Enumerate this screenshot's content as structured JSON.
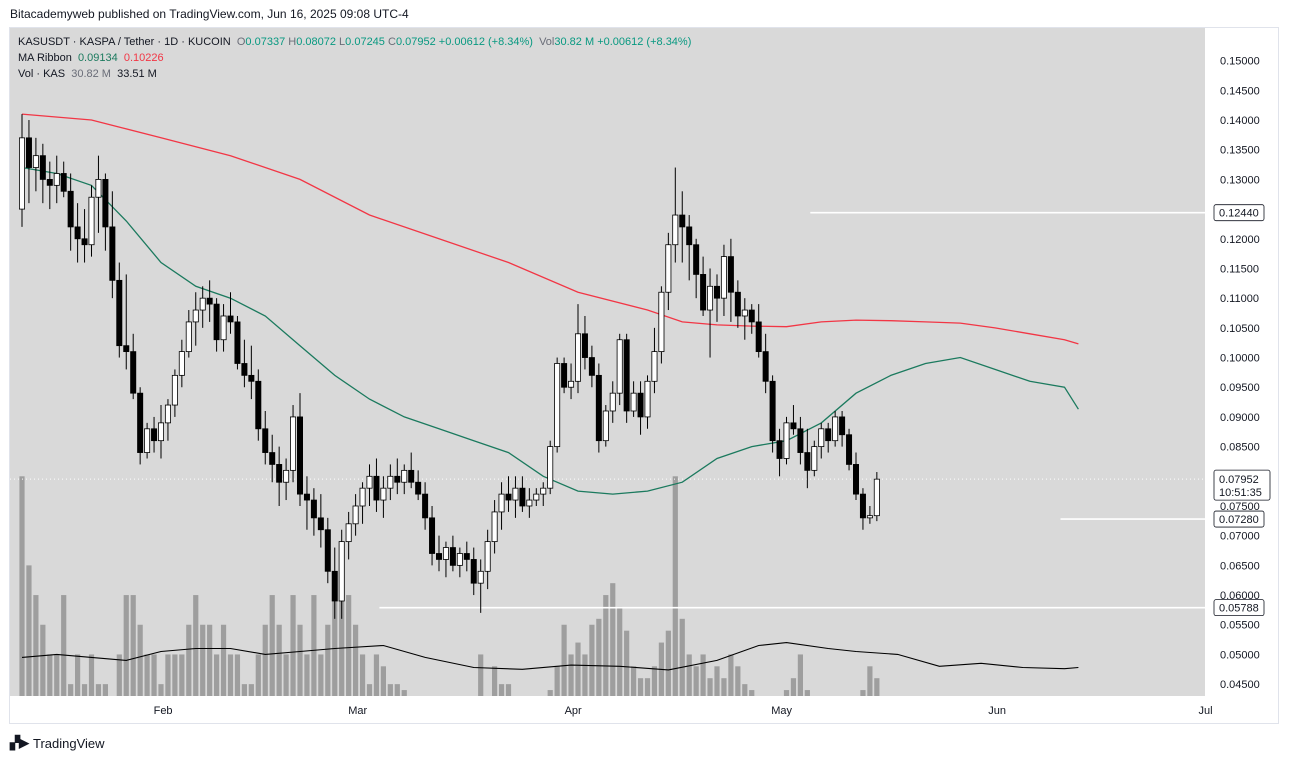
{
  "publisher": "Bitacademyweb published on TradingView.com, Jun 16, 2025 09:08 UTC-4",
  "brand": "TradingView",
  "legend": {
    "symbol": "KASUSDT · KASPA / Tether · 1D · KUCOIN",
    "o_label": "O",
    "o_value": "0.07337",
    "h_label": "H",
    "h_value": "0.08072",
    "l_label": "L",
    "l_value": "0.07245",
    "c_label": "C",
    "c_value": "0.07952",
    "change": "+0.00612 (+8.34%)",
    "vol_label": "Vol",
    "vol_value": "30.82 M",
    "vol_change": "+0.00612 (+8.34%)",
    "ma_label": "MA Ribbon",
    "ma_fast": "0.09134",
    "ma_slow": "0.10226",
    "volind_label": "Vol · KAS",
    "volind_v1": "30.82 M",
    "volind_v2": "33.51 M"
  },
  "chart_data": {
    "type": "candlestick",
    "ylim": [
      0.043,
      0.1555
    ],
    "y_ticks": [
      "0.15000",
      "0.14500",
      "0.14000",
      "0.13500",
      "0.13000",
      "0.12000",
      "0.11500",
      "0.11000",
      "0.10500",
      "0.10000",
      "0.09500",
      "0.09000",
      "0.08500",
      "0.07500",
      "0.07000",
      "0.06500",
      "0.06000",
      "0.05500",
      "0.05000",
      "0.04500"
    ],
    "x_labels": [
      {
        "label": "Feb",
        "index": 20.3
      },
      {
        "label": "Mar",
        "index": 48.3
      },
      {
        "label": "Apr",
        "index": 79.3
      },
      {
        "label": "May",
        "index": 109.3
      },
      {
        "label": "Jun",
        "index": 140.3
      },
      {
        "label": "Jul",
        "index": 170.3
      }
    ],
    "price_levels": [
      {
        "label": "0.12440",
        "value": 0.1244,
        "from_index": 114
      },
      {
        "label": "0.07280",
        "value": 0.0728,
        "from_index": 150
      },
      {
        "label": "0.05788",
        "value": 0.05788,
        "from_index": 52
      }
    ],
    "last_price": {
      "label": "0.07952",
      "countdown": "10:51:35",
      "value": 0.07952
    },
    "colors": {
      "up": "#ffffff",
      "down": "#000000",
      "wick": "#000000",
      "ma_fast": "#1b7a5e",
      "ma_slow": "#f23645",
      "volume": "#9e9e9e",
      "vol_ma": "#000000",
      "level": "#ffffff",
      "background": "#d9d9d9"
    },
    "candle_x0": 12,
    "candle_step": 6.95,
    "candles": [
      [
        0.125,
        0.141,
        0.122,
        0.137
      ],
      [
        0.137,
        0.14,
        0.126,
        0.132
      ],
      [
        0.132,
        0.137,
        0.128,
        0.134
      ],
      [
        0.134,
        0.136,
        0.126,
        0.13
      ],
      [
        0.13,
        0.133,
        0.125,
        0.129
      ],
      [
        0.129,
        0.134,
        0.126,
        0.131
      ],
      [
        0.131,
        0.133,
        0.127,
        0.128
      ],
      [
        0.128,
        0.131,
        0.118,
        0.122
      ],
      [
        0.122,
        0.126,
        0.116,
        0.12
      ],
      [
        0.12,
        0.125,
        0.116,
        0.119
      ],
      [
        0.119,
        0.129,
        0.117,
        0.127
      ],
      [
        0.127,
        0.134,
        0.121,
        0.13
      ],
      [
        0.13,
        0.131,
        0.118,
        0.122
      ],
      [
        0.122,
        0.128,
        0.11,
        0.113
      ],
      [
        0.113,
        0.116,
        0.1,
        0.102
      ],
      [
        0.102,
        0.114,
        0.098,
        0.101
      ],
      [
        0.101,
        0.104,
        0.093,
        0.094
      ],
      [
        0.094,
        0.095,
        0.082,
        0.084
      ],
      [
        0.084,
        0.089,
        0.083,
        0.088
      ],
      [
        0.088,
        0.09,
        0.084,
        0.086
      ],
      [
        0.086,
        0.092,
        0.083,
        0.089
      ],
      [
        0.089,
        0.093,
        0.086,
        0.092
      ],
      [
        0.092,
        0.098,
        0.09,
        0.097
      ],
      [
        0.097,
        0.103,
        0.095,
        0.101
      ],
      [
        0.101,
        0.108,
        0.1,
        0.106
      ],
      [
        0.106,
        0.111,
        0.102,
        0.108
      ],
      [
        0.108,
        0.112,
        0.105,
        0.11
      ],
      [
        0.11,
        0.113,
        0.106,
        0.109
      ],
      [
        0.109,
        0.11,
        0.101,
        0.103
      ],
      [
        0.103,
        0.109,
        0.101,
        0.107
      ],
      [
        0.107,
        0.111,
        0.104,
        0.106
      ],
      [
        0.106,
        0.107,
        0.098,
        0.099
      ],
      [
        0.099,
        0.103,
        0.095,
        0.097
      ],
      [
        0.097,
        0.102,
        0.093,
        0.096
      ],
      [
        0.096,
        0.098,
        0.086,
        0.088
      ],
      [
        0.088,
        0.091,
        0.082,
        0.084
      ],
      [
        0.084,
        0.087,
        0.079,
        0.082
      ],
      [
        0.082,
        0.085,
        0.075,
        0.079
      ],
      [
        0.079,
        0.083,
        0.076,
        0.081
      ],
      [
        0.081,
        0.092,
        0.079,
        0.09
      ],
      [
        0.09,
        0.094,
        0.075,
        0.077
      ],
      [
        0.077,
        0.08,
        0.071,
        0.076
      ],
      [
        0.076,
        0.078,
        0.07,
        0.073
      ],
      [
        0.073,
        0.077,
        0.068,
        0.071
      ],
      [
        0.071,
        0.073,
        0.062,
        0.064
      ],
      [
        0.064,
        0.068,
        0.056,
        0.059
      ],
      [
        0.059,
        0.071,
        0.056,
        0.069
      ],
      [
        0.069,
        0.074,
        0.066,
        0.072
      ],
      [
        0.072,
        0.077,
        0.07,
        0.075
      ],
      [
        0.075,
        0.079,
        0.072,
        0.078
      ],
      [
        0.078,
        0.082,
        0.075,
        0.08
      ],
      [
        0.08,
        0.083,
        0.074,
        0.076
      ],
      [
        0.076,
        0.08,
        0.073,
        0.078
      ],
      [
        0.078,
        0.082,
        0.076,
        0.08
      ],
      [
        0.08,
        0.083,
        0.077,
        0.079
      ],
      [
        0.079,
        0.082,
        0.077,
        0.081
      ],
      [
        0.081,
        0.084,
        0.078,
        0.079
      ],
      [
        0.079,
        0.081,
        0.076,
        0.077
      ],
      [
        0.077,
        0.079,
        0.071,
        0.073
      ],
      [
        0.073,
        0.075,
        0.065,
        0.067
      ],
      [
        0.067,
        0.07,
        0.064,
        0.066
      ],
      [
        0.066,
        0.069,
        0.063,
        0.068
      ],
      [
        0.068,
        0.07,
        0.064,
        0.065
      ],
      [
        0.065,
        0.068,
        0.063,
        0.067
      ],
      [
        0.067,
        0.069,
        0.064,
        0.066
      ],
      [
        0.066,
        0.068,
        0.06,
        0.062
      ],
      [
        0.062,
        0.066,
        0.057,
        0.064
      ],
      [
        0.064,
        0.071,
        0.061,
        0.069
      ],
      [
        0.069,
        0.076,
        0.067,
        0.074
      ],
      [
        0.074,
        0.079,
        0.071,
        0.077
      ],
      [
        0.077,
        0.08,
        0.074,
        0.076
      ],
      [
        0.076,
        0.08,
        0.073,
        0.078
      ],
      [
        0.078,
        0.08,
        0.074,
        0.075
      ],
      [
        0.075,
        0.078,
        0.073,
        0.076
      ],
      [
        0.076,
        0.078,
        0.075,
        0.077
      ],
      [
        0.077,
        0.079,
        0.075,
        0.078
      ],
      [
        0.078,
        0.086,
        0.077,
        0.085
      ],
      [
        0.085,
        0.1,
        0.084,
        0.099
      ],
      [
        0.099,
        0.1,
        0.094,
        0.095
      ],
      [
        0.095,
        0.099,
        0.093,
        0.096
      ],
      [
        0.096,
        0.109,
        0.094,
        0.104
      ],
      [
        0.104,
        0.107,
        0.098,
        0.1
      ],
      [
        0.1,
        0.102,
        0.095,
        0.097
      ],
      [
        0.097,
        0.099,
        0.084,
        0.086
      ],
      [
        0.086,
        0.092,
        0.085,
        0.091
      ],
      [
        0.091,
        0.096,
        0.089,
        0.094
      ],
      [
        0.094,
        0.104,
        0.092,
        0.103
      ],
      [
        0.103,
        0.104,
        0.089,
        0.091
      ],
      [
        0.091,
        0.096,
        0.09,
        0.094
      ],
      [
        0.094,
        0.096,
        0.087,
        0.09
      ],
      [
        0.09,
        0.097,
        0.088,
        0.096
      ],
      [
        0.096,
        0.105,
        0.094,
        0.101
      ],
      [
        0.101,
        0.112,
        0.099,
        0.111
      ],
      [
        0.111,
        0.121,
        0.108,
        0.119
      ],
      [
        0.119,
        0.132,
        0.116,
        0.124
      ],
      [
        0.124,
        0.128,
        0.116,
        0.122
      ],
      [
        0.122,
        0.124,
        0.113,
        0.119
      ],
      [
        0.119,
        0.12,
        0.11,
        0.114
      ],
      [
        0.114,
        0.117,
        0.107,
        0.108
      ],
      [
        0.108,
        0.115,
        0.1,
        0.112
      ],
      [
        0.112,
        0.114,
        0.106,
        0.11
      ],
      [
        0.11,
        0.119,
        0.107,
        0.117
      ],
      [
        0.117,
        0.12,
        0.106,
        0.111
      ],
      [
        0.111,
        0.113,
        0.105,
        0.107
      ],
      [
        0.107,
        0.11,
        0.103,
        0.108
      ],
      [
        0.108,
        0.109,
        0.104,
        0.106
      ],
      [
        0.106,
        0.109,
        0.1,
        0.101
      ],
      [
        0.101,
        0.104,
        0.094,
        0.096
      ],
      [
        0.096,
        0.097,
        0.084,
        0.086
      ],
      [
        0.086,
        0.088,
        0.08,
        0.083
      ],
      [
        0.083,
        0.09,
        0.082,
        0.089
      ],
      [
        0.089,
        0.092,
        0.087,
        0.088
      ],
      [
        0.088,
        0.09,
        0.082,
        0.084
      ],
      [
        0.084,
        0.088,
        0.078,
        0.081
      ],
      [
        0.081,
        0.086,
        0.08,
        0.085
      ],
      [
        0.085,
        0.089,
        0.083,
        0.088
      ],
      [
        0.088,
        0.089,
        0.084,
        0.086
      ],
      [
        0.086,
        0.091,
        0.085,
        0.09
      ],
      [
        0.09,
        0.091,
        0.085,
        0.087
      ],
      [
        0.087,
        0.088,
        0.081,
        0.082
      ],
      [
        0.082,
        0.084,
        0.076,
        0.077
      ],
      [
        0.077,
        0.078,
        0.071,
        0.073
      ],
      [
        0.073,
        0.075,
        0.072,
        0.07337
      ],
      [
        0.07337,
        0.08072,
        0.07245,
        0.07952
      ]
    ],
    "volumes": [
      0.08,
      0.065,
      0.06,
      0.055,
      0.05,
      0.05,
      0.06,
      0.045,
      0.05,
      0.045,
      0.05,
      0.045,
      0.045,
      0.04,
      0.05,
      0.06,
      0.06,
      0.055,
      0.05,
      0.05,
      0.045,
      0.05,
      0.05,
      0.05,
      0.055,
      0.06,
      0.055,
      0.055,
      0.05,
      0.055,
      0.05,
      0.05,
      0.045,
      0.045,
      0.05,
      0.055,
      0.06,
      0.055,
      0.05,
      0.06,
      0.055,
      0.05,
      0.06,
      0.05,
      0.055,
      0.06,
      0.065,
      0.06,
      0.055,
      0.05,
      0.045,
      0.05,
      0.048,
      0.045,
      0.045,
      0.044,
      0.042,
      0.04,
      0.04,
      0.042,
      0.038,
      0.04,
      0.038,
      0.04,
      0.042,
      0.038,
      0.05,
      0.04,
      0.048,
      0.045,
      0.045,
      0.042,
      0.04,
      0.042,
      0.04,
      0.042,
      0.044,
      0.048,
      0.055,
      0.05,
      0.052,
      0.05,
      0.055,
      0.056,
      0.06,
      0.062,
      0.058,
      0.054,
      0.048,
      0.046,
      0.046,
      0.048,
      0.052,
      0.054,
      0.08,
      0.056,
      0.05,
      0.048,
      0.05,
      0.046,
      0.048,
      0.046,
      0.05,
      0.048,
      0.045,
      0.044,
      0.042,
      0.04,
      0.04,
      0.042,
      0.044,
      0.046,
      0.05,
      0.044,
      0.042,
      0.04,
      0.04,
      0.042,
      0.04,
      0.041,
      0.042,
      0.044,
      0.048,
      0.046,
      0.04,
      0.04
    ],
    "ma_fast_points": [
      [
        0,
        0.132
      ],
      [
        5,
        0.131
      ],
      [
        10,
        0.129
      ],
      [
        15,
        0.123
      ],
      [
        20,
        0.116
      ],
      [
        25,
        0.112
      ],
      [
        30,
        0.11
      ],
      [
        35,
        0.107
      ],
      [
        40,
        0.102
      ],
      [
        45,
        0.097
      ],
      [
        50,
        0.093
      ],
      [
        55,
        0.09
      ],
      [
        60,
        0.088
      ],
      [
        65,
        0.086
      ],
      [
        70,
        0.084
      ],
      [
        75,
        0.08
      ],
      [
        80,
        0.0775
      ],
      [
        85,
        0.077
      ],
      [
        90,
        0.0775
      ],
      [
        95,
        0.079
      ],
      [
        100,
        0.083
      ],
      [
        105,
        0.085
      ],
      [
        110,
        0.086
      ],
      [
        115,
        0.089
      ],
      [
        120,
        0.094
      ],
      [
        125,
        0.097
      ],
      [
        130,
        0.099
      ],
      [
        135,
        0.1
      ],
      [
        140,
        0.098
      ],
      [
        145,
        0.096
      ],
      [
        150,
        0.095
      ],
      [
        152,
        0.0913
      ]
    ],
    "ma_slow_points": [
      [
        0,
        0.141
      ],
      [
        10,
        0.14
      ],
      [
        20,
        0.137
      ],
      [
        30,
        0.134
      ],
      [
        40,
        0.13
      ],
      [
        50,
        0.124
      ],
      [
        60,
        0.12
      ],
      [
        70,
        0.116
      ],
      [
        80,
        0.111
      ],
      [
        90,
        0.108
      ],
      [
        95,
        0.106
      ],
      [
        100,
        0.1055
      ],
      [
        105,
        0.1053
      ],
      [
        110,
        0.1052
      ],
      [
        115,
        0.106
      ],
      [
        120,
        0.1063
      ],
      [
        125,
        0.1062
      ],
      [
        130,
        0.106
      ],
      [
        135,
        0.1058
      ],
      [
        140,
        0.105
      ],
      [
        145,
        0.104
      ],
      [
        150,
        0.103
      ],
      [
        152,
        0.1023
      ]
    ],
    "vol_ma_points": [
      [
        0,
        0.0495
      ],
      [
        5,
        0.05
      ],
      [
        10,
        0.0495
      ],
      [
        15,
        0.049
      ],
      [
        20,
        0.0505
      ],
      [
        25,
        0.051
      ],
      [
        30,
        0.051
      ],
      [
        35,
        0.05
      ],
      [
        40,
        0.0505
      ],
      [
        45,
        0.051
      ],
      [
        52,
        0.0515
      ],
      [
        58,
        0.0495
      ],
      [
        65,
        0.0478
      ],
      [
        72,
        0.0475
      ],
      [
        79,
        0.0482
      ],
      [
        86,
        0.048
      ],
      [
        93,
        0.0474
      ],
      [
        100,
        0.049
      ],
      [
        106,
        0.0515
      ],
      [
        110,
        0.052
      ],
      [
        116,
        0.051
      ],
      [
        120,
        0.0505
      ],
      [
        126,
        0.05
      ],
      [
        132,
        0.048
      ],
      [
        138,
        0.0485
      ],
      [
        144,
        0.0478
      ],
      [
        150,
        0.0476
      ],
      [
        152,
        0.0478
      ]
    ],
    "grid": false,
    "legend_position": "top-left"
  }
}
